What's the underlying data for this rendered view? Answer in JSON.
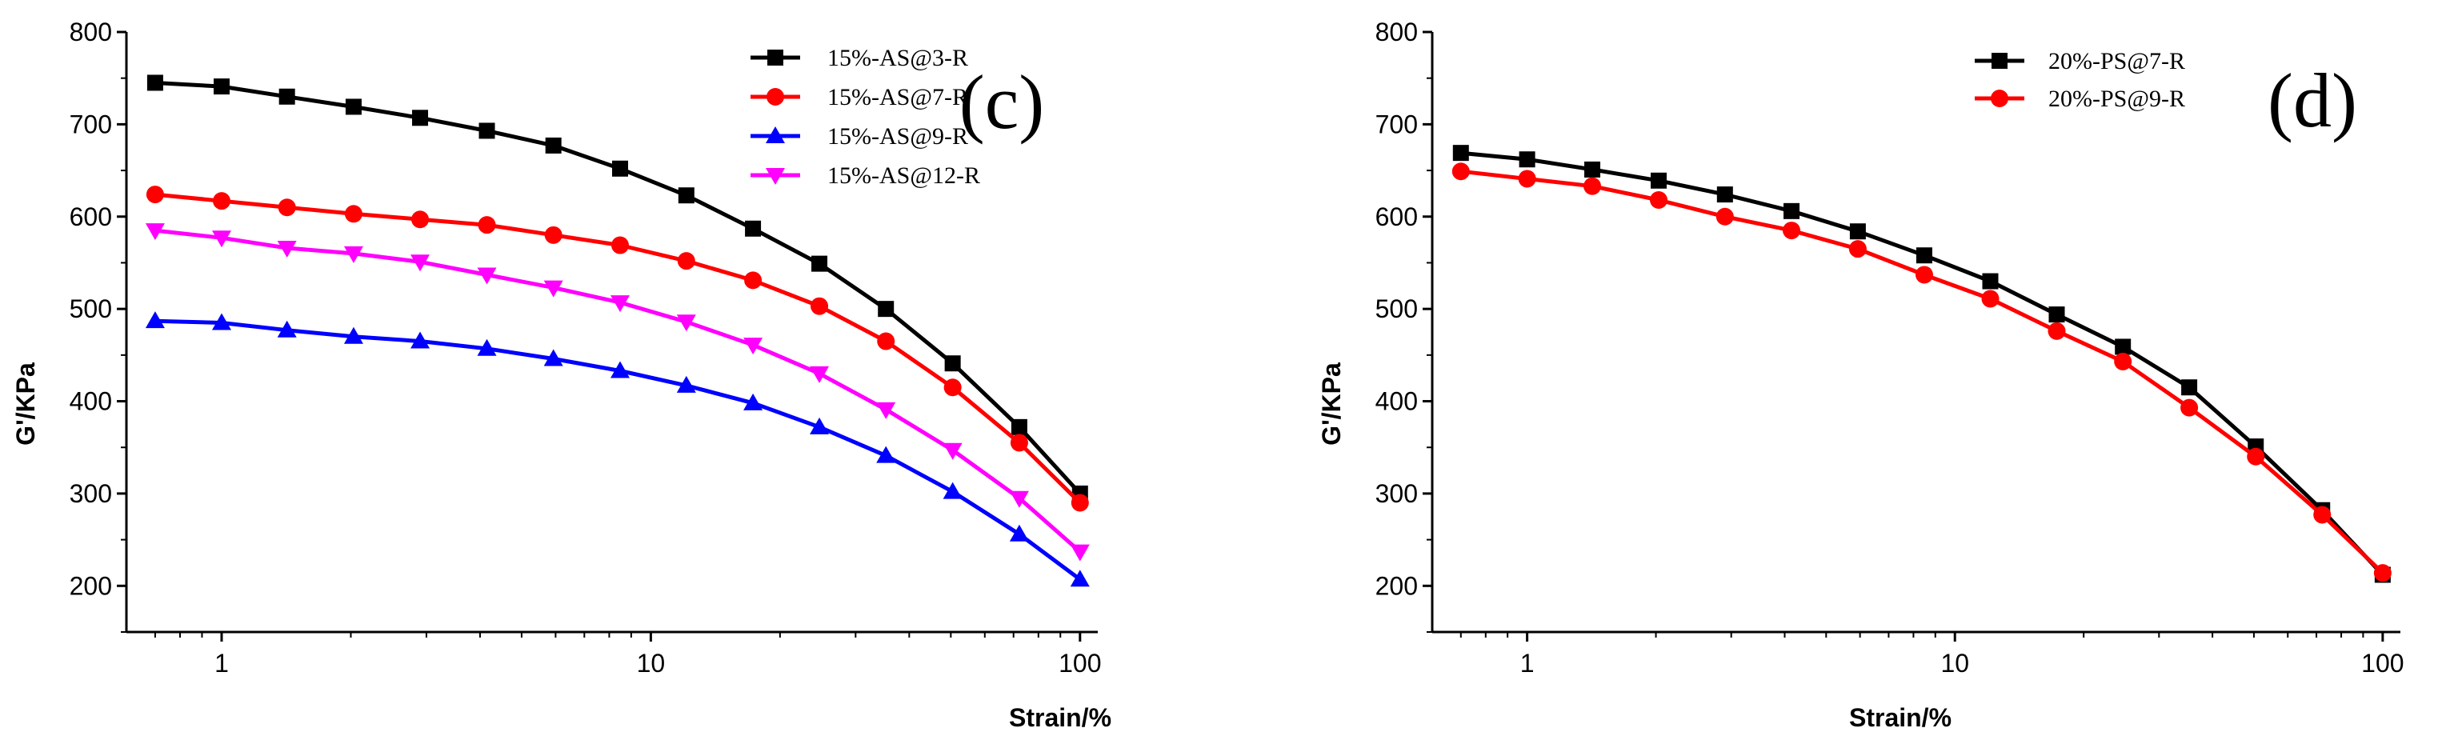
{
  "chart_data": [
    {
      "type": "line",
      "panel_label": "(c)",
      "xlabel": "Strain/%",
      "ylabel": "G'/KPa",
      "xscale": "log",
      "xlim": [
        0.6,
        110
      ],
      "ylim": [
        150,
        800
      ],
      "xticks": [
        1,
        10,
        100
      ],
      "xtick_labels": [
        "1",
        "10",
        "100"
      ],
      "yticks": [
        200,
        300,
        400,
        500,
        600,
        700,
        800
      ],
      "ytick_labels": [
        "200",
        "300",
        "400",
        "500",
        "600",
        "700",
        "800"
      ],
      "legend_position": "top-right",
      "x": [
        0.7,
        1,
        1.42,
        2.03,
        2.9,
        4.15,
        5.93,
        8.48,
        12.1,
        17.3,
        24.7,
        35.3,
        50.5,
        72.2,
        100
      ],
      "series": [
        {
          "name": "15%-AS@3-R",
          "color": "#000000",
          "marker": "square",
          "values": [
            745,
            741,
            730,
            719,
            707,
            693,
            677,
            652,
            623,
            587,
            549,
            500,
            441,
            372,
            300
          ]
        },
        {
          "name": "15%-AS@7-R",
          "color": "#ff0000",
          "marker": "circle",
          "values": [
            624,
            617,
            610,
            603,
            597,
            591,
            580,
            569,
            552,
            531,
            503,
            465,
            415,
            355,
            290
          ]
        },
        {
          "name": "15%-AS@9-R",
          "color": "#0000ff",
          "marker": "triangle-up",
          "values": [
            487,
            485,
            477,
            470,
            465,
            457,
            446,
            433,
            417,
            398,
            372,
            341,
            302,
            256,
            207
          ]
        },
        {
          "name": "15%-AS@12-R",
          "color": "#ff00ff",
          "marker": "triangle-down",
          "values": [
            585,
            577,
            566,
            560,
            551,
            537,
            523,
            507,
            486,
            461,
            430,
            391,
            347,
            295,
            237
          ]
        }
      ]
    },
    {
      "type": "line",
      "panel_label": "(d)",
      "xlabel": "Strain/%",
      "ylabel": "G'/KPa",
      "xscale": "log",
      "xlim": [
        0.6,
        110
      ],
      "ylim": [
        150,
        800
      ],
      "xticks": [
        1,
        10,
        100
      ],
      "xtick_labels": [
        "1",
        "10",
        "100"
      ],
      "yticks": [
        200,
        300,
        400,
        500,
        600,
        700,
        800
      ],
      "ytick_labels": [
        "200",
        "300",
        "400",
        "500",
        "600",
        "700",
        "800"
      ],
      "legend_position": "top-center",
      "x": [
        0.7,
        1,
        1.42,
        2.03,
        2.9,
        4.15,
        5.93,
        8.48,
        12.1,
        17.3,
        24.7,
        35.3,
        50.5,
        72.2,
        100
      ],
      "series": [
        {
          "name": "20%-PS@7-R",
          "color": "#000000",
          "marker": "square",
          "values": [
            669,
            662,
            651,
            639,
            624,
            606,
            584,
            558,
            530,
            494,
            459,
            415,
            351,
            282,
            212
          ]
        },
        {
          "name": "20%-PS@9-R",
          "color": "#ff0000",
          "marker": "circle",
          "values": [
            649,
            641,
            633,
            618,
            600,
            585,
            565,
            537,
            511,
            476,
            443,
            393,
            340,
            277,
            214
          ]
        }
      ]
    }
  ]
}
